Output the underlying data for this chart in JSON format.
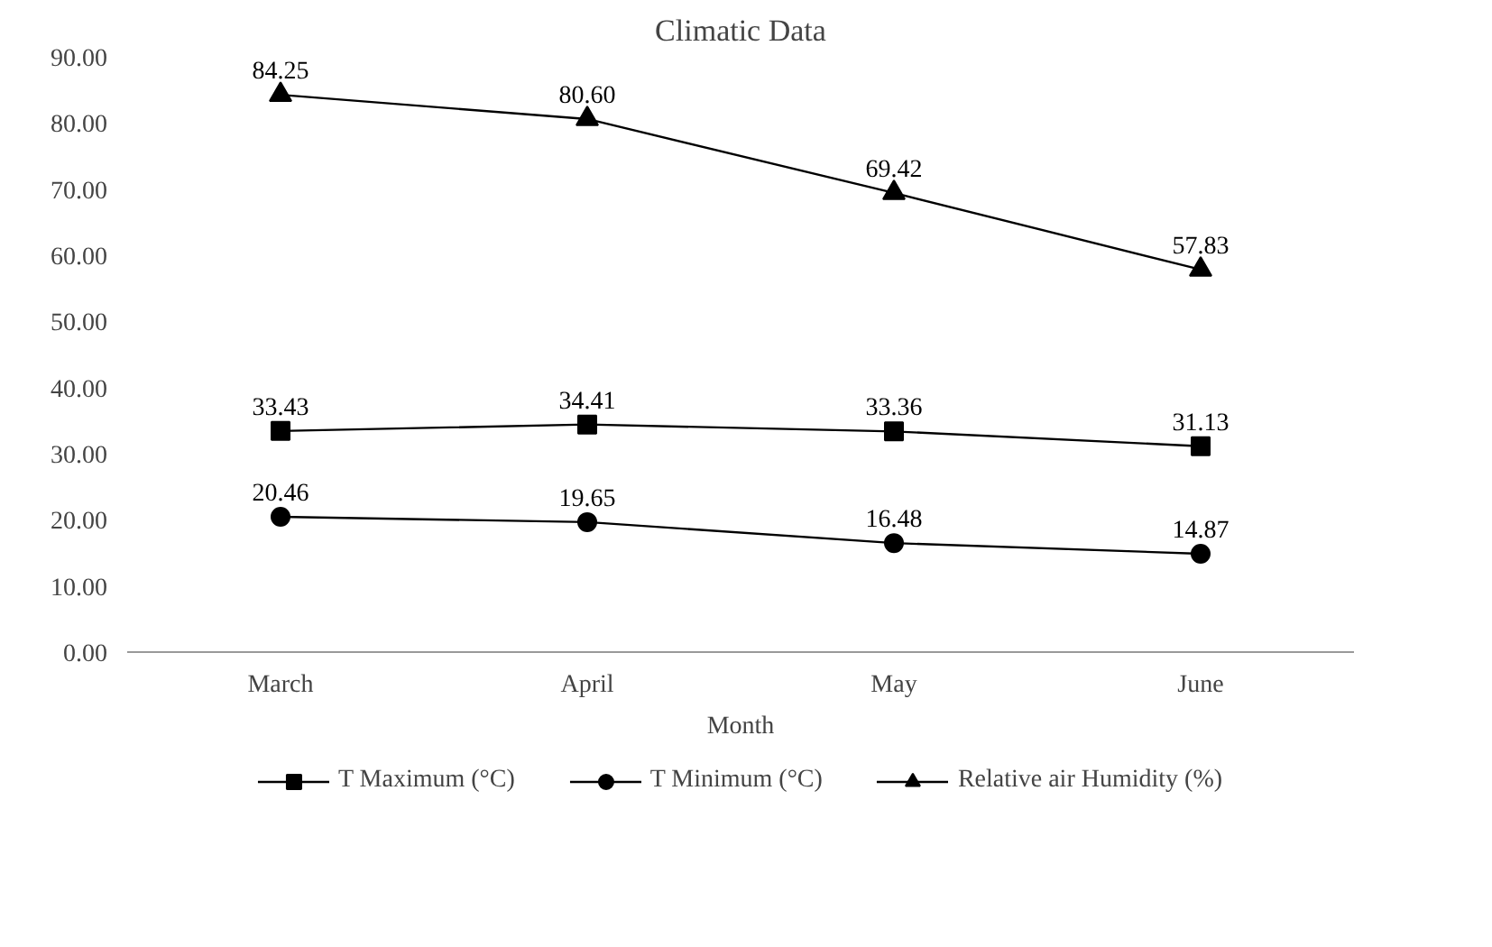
{
  "chart_data": {
    "type": "line",
    "title": "Climatic Data",
    "xlabel": "Month",
    "categories": [
      "March",
      "April",
      "May",
      "June"
    ],
    "series": [
      {
        "name": "T Maximum (°C)",
        "color": "#000000",
        "marker": "square",
        "values": [
          33.43,
          34.41,
          33.36,
          31.13
        ],
        "value_labels": [
          "33.43",
          "34.41",
          "33.36",
          "31.13"
        ]
      },
      {
        "name": "T Minimum (°C)",
        "color": "#000000",
        "marker": "circle",
        "values": [
          20.46,
          19.65,
          16.48,
          14.87
        ],
        "value_labels": [
          "20.46",
          "19.65",
          "16.48",
          "14.87"
        ]
      },
      {
        "name": "Relative air Humidity (%)",
        "color": "#000000",
        "marker": "triangle",
        "values": [
          84.25,
          80.6,
          69.42,
          57.83
        ],
        "value_labels": [
          "84.25",
          "80.60",
          "69.42",
          "57.83"
        ]
      }
    ],
    "ylim": [
      0,
      90
    ],
    "yticks": [
      {
        "value": 0,
        "label": "0.00"
      },
      {
        "value": 10,
        "label": "10.00"
      },
      {
        "value": 20,
        "label": "20.00"
      },
      {
        "value": 30,
        "label": "30.00"
      },
      {
        "value": 40,
        "label": "40.00"
      },
      {
        "value": 50,
        "label": "50.00"
      },
      {
        "value": 60,
        "label": "60.00"
      },
      {
        "value": 70,
        "label": "70.00"
      },
      {
        "value": 80,
        "label": "80.00"
      },
      {
        "value": 90,
        "label": "90.00"
      }
    ],
    "grid": false,
    "legend": "bottom",
    "line_style": "solid"
  }
}
